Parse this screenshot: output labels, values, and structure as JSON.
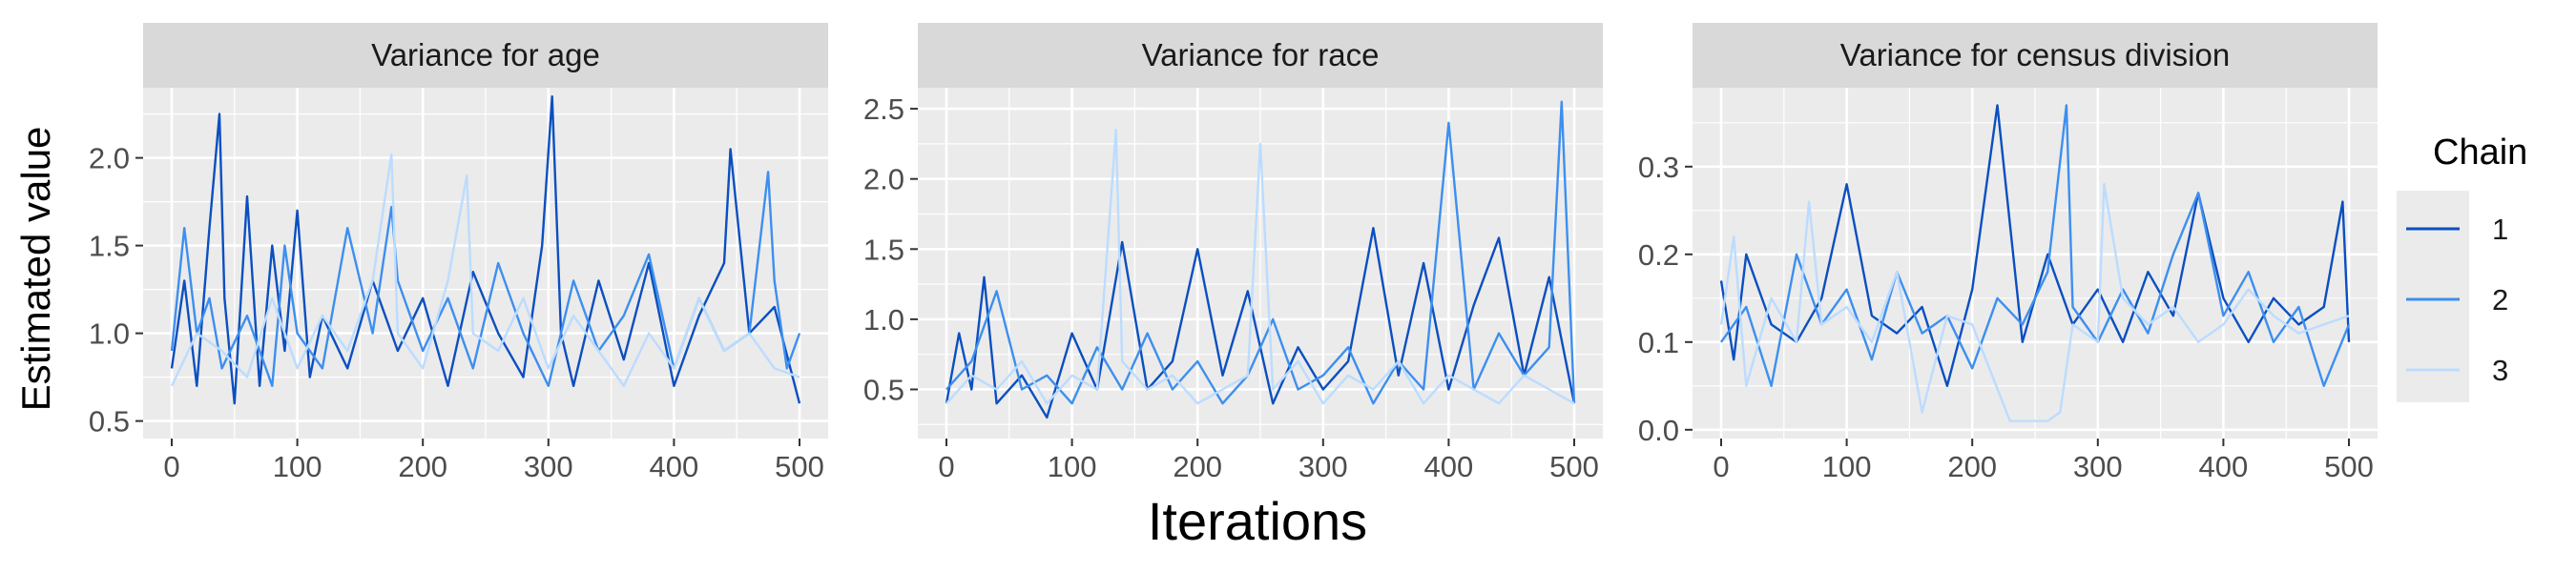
{
  "chart_data": [
    {
      "type": "line",
      "title": "Variance for age",
      "xlabel": "Iterations",
      "ylabel": "Estimated value",
      "xlim": [
        0,
        500
      ],
      "ylim": [
        0.4,
        2.4
      ],
      "x_ticks": [
        0,
        100,
        200,
        300,
        400,
        500
      ],
      "y_ticks": [
        0.5,
        1.0,
        1.5,
        2.0
      ],
      "y_tick_labels": [
        "0.5",
        "1.0",
        "1.5",
        "2.0"
      ],
      "grid": true,
      "series": [
        {
          "name": "1",
          "color": "#0b4fc0",
          "x": [
            0,
            10,
            20,
            30,
            38,
            42,
            50,
            60,
            70,
            80,
            90,
            100,
            110,
            120,
            140,
            160,
            180,
            200,
            220,
            240,
            260,
            280,
            295,
            303,
            310,
            320,
            340,
            360,
            380,
            400,
            420,
            440,
            445,
            460,
            480,
            500
          ],
          "y": [
            0.8,
            1.3,
            0.7,
            1.6,
            2.25,
            1.2,
            0.6,
            1.78,
            0.7,
            1.5,
            0.9,
            1.7,
            0.75,
            1.1,
            0.8,
            1.3,
            0.9,
            1.2,
            0.7,
            1.35,
            1.0,
            0.75,
            1.5,
            2.35,
            1.0,
            0.7,
            1.3,
            0.85,
            1.4,
            0.7,
            1.1,
            1.4,
            2.05,
            1.0,
            1.15,
            0.6
          ]
        },
        {
          "name": "2",
          "color": "#3d8fef",
          "x": [
            0,
            10,
            20,
            30,
            40,
            60,
            80,
            90,
            100,
            120,
            140,
            160,
            175,
            180,
            200,
            220,
            240,
            260,
            280,
            300,
            320,
            340,
            360,
            380,
            400,
            420,
            440,
            460,
            475,
            480,
            490,
            500
          ],
          "y": [
            0.9,
            1.6,
            1.0,
            1.2,
            0.8,
            1.1,
            0.7,
            1.5,
            1.0,
            0.8,
            1.6,
            1.0,
            1.72,
            1.3,
            0.9,
            1.2,
            0.8,
            1.4,
            1.0,
            0.7,
            1.3,
            0.9,
            1.1,
            1.45,
            0.8,
            1.2,
            0.9,
            1.0,
            1.92,
            1.3,
            0.8,
            1.0
          ]
        },
        {
          "name": "3",
          "color": "#bcdcff",
          "x": [
            0,
            20,
            40,
            60,
            80,
            100,
            120,
            140,
            160,
            175,
            180,
            200,
            220,
            235,
            240,
            260,
            280,
            300,
            320,
            340,
            360,
            380,
            400,
            420,
            440,
            460,
            480,
            500
          ],
          "y": [
            0.7,
            1.0,
            0.9,
            0.75,
            1.2,
            0.8,
            1.1,
            0.9,
            1.3,
            2.02,
            1.0,
            0.8,
            1.3,
            1.9,
            1.0,
            0.9,
            1.2,
            0.8,
            1.1,
            0.9,
            0.7,
            1.0,
            0.8,
            1.2,
            0.9,
            1.0,
            0.8,
            0.75
          ]
        }
      ]
    },
    {
      "type": "line",
      "title": "Variance for race",
      "xlabel": "Iterations",
      "ylabel": "Estimated value",
      "xlim": [
        0,
        500
      ],
      "ylim": [
        0.15,
        2.65
      ],
      "x_ticks": [
        0,
        100,
        200,
        300,
        400,
        500
      ],
      "y_ticks": [
        0.5,
        1.0,
        1.5,
        2.0,
        2.5
      ],
      "y_tick_labels": [
        "0.5",
        "1.0",
        "1.5",
        "2.0",
        "2.5"
      ],
      "grid": true,
      "series": [
        {
          "name": "1",
          "color": "#0b4fc0",
          "x": [
            0,
            10,
            20,
            30,
            40,
            60,
            80,
            100,
            120,
            140,
            160,
            180,
            200,
            220,
            240,
            260,
            280,
            300,
            320,
            340,
            360,
            380,
            400,
            420,
            440,
            460,
            480,
            500
          ],
          "y": [
            0.4,
            0.9,
            0.5,
            1.3,
            0.4,
            0.6,
            0.3,
            0.9,
            0.5,
            1.55,
            0.5,
            0.7,
            1.5,
            0.6,
            1.2,
            0.4,
            0.8,
            0.5,
            0.7,
            1.65,
            0.6,
            1.4,
            0.5,
            1.1,
            1.58,
            0.6,
            1.3,
            0.4
          ]
        },
        {
          "name": "2",
          "color": "#3d8fef",
          "x": [
            0,
            20,
            40,
            60,
            80,
            100,
            120,
            140,
            160,
            180,
            200,
            220,
            240,
            260,
            280,
            300,
            320,
            340,
            360,
            380,
            400,
            420,
            440,
            460,
            480,
            490,
            500
          ],
          "y": [
            0.5,
            0.7,
            1.2,
            0.5,
            0.6,
            0.4,
            0.8,
            0.5,
            0.9,
            0.5,
            0.7,
            0.4,
            0.6,
            1.0,
            0.5,
            0.6,
            0.8,
            0.4,
            0.7,
            0.5,
            2.4,
            0.5,
            0.9,
            0.6,
            0.8,
            2.55,
            0.4
          ]
        },
        {
          "name": "3",
          "color": "#bcdcff",
          "x": [
            0,
            20,
            40,
            60,
            80,
            100,
            120,
            135,
            140,
            160,
            180,
            200,
            220,
            240,
            250,
            260,
            280,
            300,
            320,
            340,
            360,
            380,
            400,
            420,
            440,
            460,
            480,
            500
          ],
          "y": [
            0.4,
            0.6,
            0.5,
            0.7,
            0.4,
            0.6,
            0.5,
            2.35,
            0.7,
            0.5,
            0.6,
            0.4,
            0.5,
            0.6,
            2.25,
            0.5,
            0.7,
            0.4,
            0.6,
            0.5,
            0.7,
            0.4,
            0.6,
            0.5,
            0.4,
            0.6,
            0.5,
            0.4
          ]
        }
      ]
    },
    {
      "type": "line",
      "title": "Variance for census division",
      "xlabel": "Iterations",
      "ylabel": "Estimated value",
      "xlim": [
        0,
        500
      ],
      "ylim": [
        -0.01,
        0.39
      ],
      "x_ticks": [
        0,
        100,
        200,
        300,
        400,
        500
      ],
      "y_ticks": [
        0.0,
        0.1,
        0.2,
        0.3
      ],
      "y_tick_labels": [
        "0.0",
        "0.1",
        "0.2",
        "0.3"
      ],
      "grid": true,
      "series": [
        {
          "name": "1",
          "color": "#0b4fc0",
          "x": [
            0,
            10,
            20,
            40,
            60,
            80,
            100,
            120,
            140,
            160,
            180,
            200,
            220,
            240,
            260,
            280,
            300,
            320,
            340,
            360,
            380,
            400,
            420,
            440,
            460,
            480,
            495,
            500
          ],
          "y": [
            0.17,
            0.08,
            0.2,
            0.12,
            0.1,
            0.15,
            0.28,
            0.13,
            0.11,
            0.14,
            0.05,
            0.16,
            0.37,
            0.1,
            0.2,
            0.12,
            0.16,
            0.1,
            0.18,
            0.13,
            0.27,
            0.15,
            0.1,
            0.15,
            0.12,
            0.14,
            0.26,
            0.1
          ]
        },
        {
          "name": "2",
          "color": "#3d8fef",
          "x": [
            0,
            20,
            40,
            60,
            80,
            100,
            120,
            140,
            160,
            180,
            200,
            220,
            240,
            260,
            275,
            280,
            300,
            320,
            340,
            360,
            380,
            400,
            420,
            440,
            460,
            480,
            500
          ],
          "y": [
            0.1,
            0.14,
            0.05,
            0.2,
            0.12,
            0.16,
            0.08,
            0.18,
            0.11,
            0.13,
            0.07,
            0.15,
            0.12,
            0.18,
            0.37,
            0.14,
            0.1,
            0.16,
            0.11,
            0.2,
            0.27,
            0.13,
            0.18,
            0.1,
            0.14,
            0.05,
            0.12
          ]
        },
        {
          "name": "3",
          "color": "#bcdcff",
          "x": [
            0,
            10,
            20,
            40,
            60,
            70,
            80,
            100,
            120,
            140,
            160,
            180,
            200,
            230,
            240,
            260,
            270,
            280,
            300,
            305,
            320,
            340,
            360,
            380,
            400,
            420,
            440,
            460,
            480,
            500
          ],
          "y": [
            0.12,
            0.22,
            0.05,
            0.15,
            0.1,
            0.26,
            0.12,
            0.14,
            0.1,
            0.18,
            0.02,
            0.13,
            0.12,
            0.01,
            0.01,
            0.01,
            0.02,
            0.12,
            0.1,
            0.28,
            0.15,
            0.12,
            0.14,
            0.1,
            0.12,
            0.16,
            0.13,
            0.11,
            0.12,
            0.13
          ]
        }
      ]
    }
  ],
  "legend": {
    "title": "Chain",
    "items": [
      {
        "label": "1",
        "color": "#0b4fc0"
      },
      {
        "label": "2",
        "color": "#3d8fef"
      },
      {
        "label": "3",
        "color": "#bcdcff"
      }
    ]
  },
  "colors": {
    "panel_bg": "#ebebeb",
    "strip_bg": "#d9d9d9",
    "grid": "#ffffff",
    "tick_text": "#4d4d4d"
  }
}
